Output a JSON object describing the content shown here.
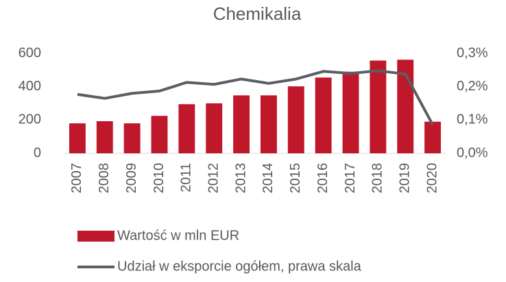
{
  "chart_data": {
    "type": "bar_line",
    "title": "Chemikalia",
    "categories": [
      "2007",
      "2008",
      "2009",
      "2010",
      "2011",
      "2012",
      "2013",
      "2014",
      "2015",
      "2016",
      "2017",
      "2018",
      "2019",
      "2020"
    ],
    "series": [
      {
        "name": "Wartość w mln EUR",
        "color": "#c0182b",
        "type": "bar",
        "values": [
          180,
          193,
          180,
          225,
          295,
          300,
          348,
          348,
          402,
          455,
          490,
          557,
          562,
          190
        ]
      },
      {
        "name": "Udział w eksporcie ogółem, prawa skala",
        "color": "#5a5f63",
        "type": "line",
        "axis": "y2",
        "values": [
          0.177,
          0.165,
          0.18,
          0.187,
          0.213,
          0.207,
          0.223,
          0.21,
          0.223,
          0.246,
          0.24,
          0.248,
          0.238,
          0.086
        ]
      }
    ],
    "ylim": [
      0,
      600
    ],
    "yticks": [
      0,
      200,
      400,
      600
    ],
    "y2lim": [
      0,
      0.3
    ],
    "y2ticks": [
      {
        "value": 0,
        "label": "0,0%"
      },
      {
        "value": 0.1,
        "label": "0,1%"
      },
      {
        "value": 0.2,
        "label": "0,2%"
      },
      {
        "value": 0.3,
        "label": "0,3%"
      }
    ],
    "grid": false,
    "legend": "bottom"
  }
}
